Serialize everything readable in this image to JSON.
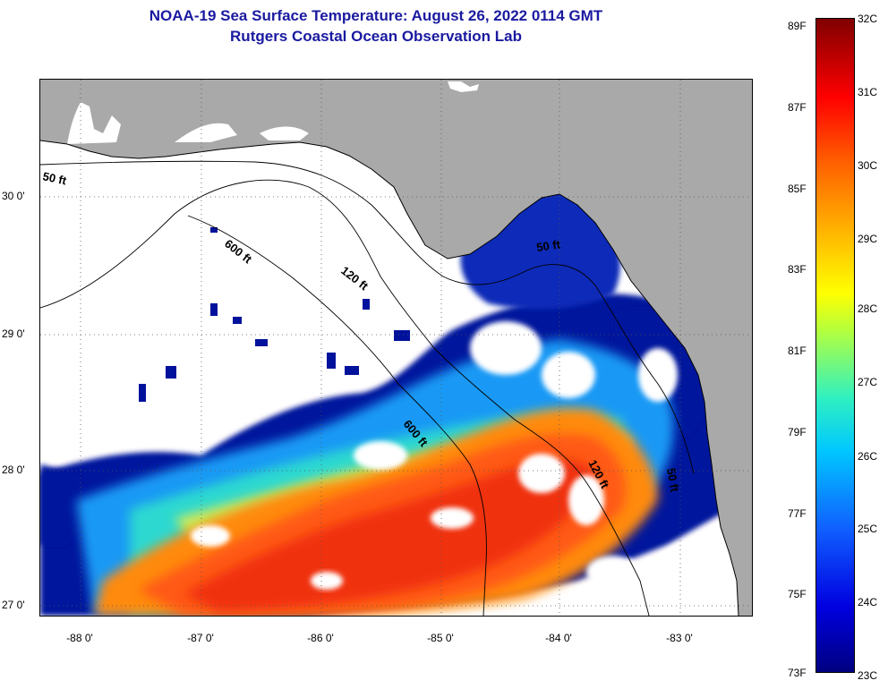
{
  "title": {
    "line1": "NOAA-19 Sea Surface Temperature:  August 26, 2022 0114 GMT",
    "line2": "Rutgers Coastal Ocean Observation Lab"
  },
  "axes": {
    "latitude_labels": [
      "30 0'",
      "29 0'",
      "28 0'",
      "27 0'"
    ],
    "longitude_labels": [
      "-88 0'",
      "-87 0'",
      "-86 0'",
      "-85 0'",
      "-84 0'",
      "-83 0'"
    ]
  },
  "depth_contours": [
    "50 ft",
    "600 ft",
    "120 ft",
    "50 ft",
    "600 ft",
    "120 ft",
    "50 ft"
  ],
  "colorbar": {
    "fahrenheit": [
      "89F",
      "87F",
      "85F",
      "83F",
      "81F",
      "79F",
      "77F",
      "75F",
      "73F"
    ],
    "celsius": [
      "32C",
      "31C",
      "30C",
      "29C",
      "28C",
      "27C",
      "26C",
      "25C",
      "24C",
      "23C"
    ]
  },
  "colors": {
    "title": "#1a1aa0",
    "land": "#a9a9a9",
    "cloud": "#ffffff",
    "cold": "#00129c",
    "warm": "#ff5a14"
  }
}
